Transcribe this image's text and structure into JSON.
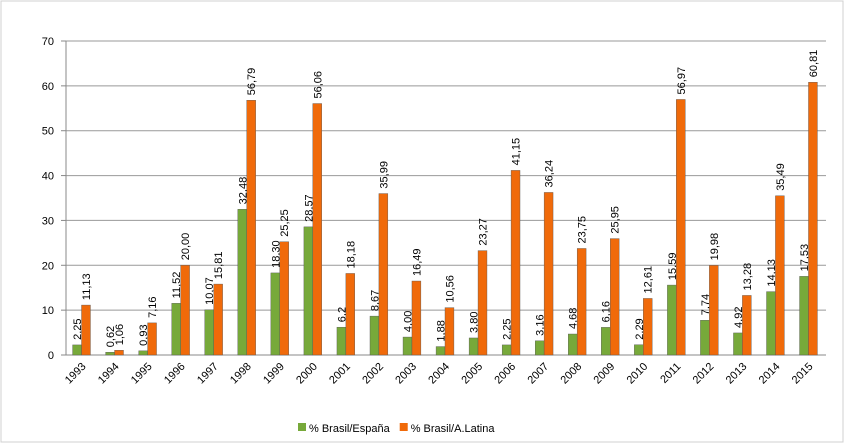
{
  "chart_data": {
    "type": "bar",
    "categories": [
      "1993",
      "1994",
      "1995",
      "1996",
      "1997",
      "1998",
      "1999",
      "2000",
      "2001",
      "2002",
      "2003",
      "2004",
      "2005",
      "2006",
      "2007",
      "2008",
      "2009",
      "2010",
      "2011",
      "2012",
      "2013",
      "2014",
      "2015"
    ],
    "series": [
      {
        "name": "% Brasil/España",
        "color": "#77a93a",
        "values": [
          2.25,
          0.62,
          0.93,
          11.52,
          10.07,
          32.48,
          18.3,
          28.57,
          6.2,
          8.67,
          4.0,
          1.88,
          3.8,
          2.25,
          3.16,
          4.68,
          6.16,
          2.29,
          15.59,
          7.74,
          4.92,
          14.13,
          17.53
        ],
        "value_labels": [
          "2,25",
          "0,62",
          "0,93",
          "11,52",
          "10,07",
          "32,48",
          "18,30",
          "28,57",
          "6,2",
          "8,67",
          "4,00",
          "1,88",
          "3,80",
          "2,25",
          "3,16",
          "4,68",
          "6,16",
          "2,29",
          "15,59",
          "7,74",
          "4,92",
          "14,13",
          "17,53"
        ]
      },
      {
        "name": "% Brasil/A.Latina",
        "color": "#f06a0a",
        "values": [
          11.13,
          1.06,
          7.16,
          20.0,
          15.81,
          56.79,
          25.25,
          56.06,
          18.18,
          35.99,
          16.49,
          10.56,
          23.27,
          41.15,
          36.24,
          23.75,
          25.95,
          12.61,
          56.97,
          19.98,
          13.28,
          35.49,
          60.81
        ],
        "value_labels": [
          "11,13",
          "1,06",
          "7,16",
          "20,00",
          "15,81",
          "56,79",
          "25,25",
          "56,06",
          "18,18",
          "35,99",
          "16,49",
          "10,56",
          "23,27",
          "41,15",
          "36,24",
          "23,75",
          "25,95",
          "12,61",
          "56,97",
          "19,98",
          "13,28",
          "35,49",
          "60,81"
        ]
      }
    ],
    "ylim": [
      0,
      70
    ],
    "yticks": [
      0,
      10,
      20,
      30,
      40,
      50,
      60,
      70
    ],
    "grid": true,
    "legend": "bottom"
  }
}
